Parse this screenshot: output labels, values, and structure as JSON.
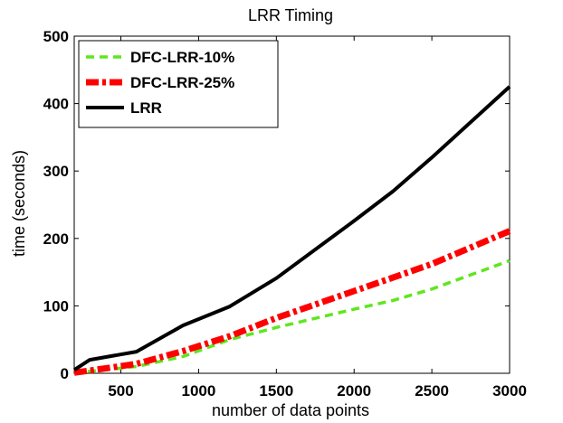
{
  "chart_data": {
    "type": "line",
    "title": "LRR Timing",
    "xlabel": "number of data points",
    "ylabel": "time (seconds)",
    "xlim": [
      200,
      3000
    ],
    "ylim": [
      0,
      500
    ],
    "xticks": [
      500,
      1000,
      1500,
      2000,
      2500,
      3000
    ],
    "yticks": [
      0,
      100,
      200,
      300,
      400,
      500
    ],
    "legend_position": "top-left",
    "series": [
      {
        "name": "DFC-LRR-10%",
        "color": "#5fe61e",
        "style": "dashed",
        "x": [
          200,
          300,
          600,
          900,
          1200,
          1500,
          2000,
          2250,
          2500,
          3000
        ],
        "y": [
          1,
          3,
          10,
          25,
          50,
          68,
          95,
          108,
          125,
          167
        ]
      },
      {
        "name": "DFC-LRR-25%",
        "color": "#ff0000",
        "style": "dashdot",
        "x": [
          200,
          300,
          600,
          900,
          1200,
          1500,
          2000,
          2250,
          2500,
          3000
        ],
        "y": [
          1,
          4,
          14,
          33,
          55,
          82,
          122,
          142,
          162,
          211
        ]
      },
      {
        "name": "LRR",
        "color": "#000000",
        "style": "solid",
        "x": [
          200,
          300,
          600,
          900,
          1200,
          1500,
          2000,
          2250,
          2500,
          3000
        ],
        "y": [
          5,
          20,
          32,
          71,
          99,
          141,
          226,
          270,
          320,
          425
        ]
      }
    ]
  }
}
